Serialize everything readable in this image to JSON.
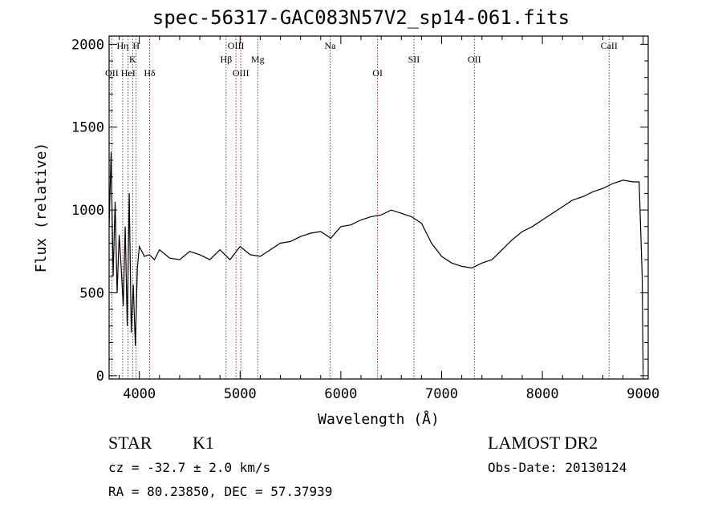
{
  "chart_data": {
    "type": "line",
    "title": "spec-56317-GAC083N57V2_sp14-061.fits",
    "xlabel": "Wavelength (Å)",
    "ylabel": "Flux (relative)",
    "xlim": [
      3700,
      9050
    ],
    "ylim": [
      -20,
      2050
    ],
    "xticks": [
      4000,
      5000,
      6000,
      7000,
      8000,
      9000
    ],
    "yticks": [
      0,
      500,
      1000,
      1500,
      2000
    ],
    "series": [
      {
        "x": [
          3700,
          3720,
          3740,
          3760,
          3780,
          3800,
          3820,
          3840,
          3860,
          3880,
          3900,
          3920,
          3940,
          3960,
          3980,
          4000,
          4050,
          4100,
          4150,
          4200,
          4300,
          4400,
          4500,
          4600,
          4700,
          4800,
          4900,
          5000,
          5100,
          5200,
          5300,
          5400,
          5500,
          5600,
          5700,
          5800,
          5900,
          6000,
          6100,
          6200,
          6300,
          6400,
          6500,
          6600,
          6700,
          6800,
          6900,
          7000,
          7100,
          7200,
          7300,
          7400,
          7500,
          7600,
          7700,
          7800,
          7900,
          8000,
          8100,
          8200,
          8300,
          8400,
          8500,
          8600,
          8700,
          8800,
          8900,
          8960,
          8990,
          9000
        ],
        "values": [
          900,
          1350,
          600,
          1050,
          500,
          850,
          650,
          420,
          900,
          300,
          1100,
          260,
          550,
          180,
          650,
          780,
          720,
          730,
          700,
          760,
          710,
          700,
          750,
          730,
          700,
          760,
          700,
          780,
          730,
          720,
          760,
          800,
          810,
          840,
          860,
          870,
          830,
          900,
          910,
          940,
          960,
          970,
          1000,
          980,
          960,
          920,
          800,
          720,
          680,
          660,
          650,
          680,
          700,
          760,
          820,
          870,
          900,
          940,
          980,
          1020,
          1060,
          1080,
          1110,
          1130,
          1160,
          1180,
          1170,
          1170,
          600,
          30
        ]
      }
    ],
    "lines": [
      {
        "label": "OII",
        "x": 3727,
        "row": 3
      },
      {
        "label": "Hη",
        "x": 3835,
        "row": 1
      },
      {
        "label": "HeI",
        "x": 3889,
        "row": 3
      },
      {
        "label": "K",
        "x": 3934,
        "row": 2
      },
      {
        "label": "H",
        "x": 3968,
        "row": 1
      },
      {
        "label": "Hδ",
        "x": 4102,
        "row": 3
      },
      {
        "label": "Hβ",
        "x": 4861,
        "row": 2
      },
      {
        "label": "OIII",
        "x": 4959,
        "row": 1
      },
      {
        "label": "OIII",
        "x": 5007,
        "row": 3
      },
      {
        "label": "Mg",
        "x": 5175,
        "row": 2
      },
      {
        "label": "Na",
        "x": 5893,
        "row": 1
      },
      {
        "label": "OI",
        "x": 6364,
        "row": 3
      },
      {
        "label": "OII",
        "x": 7325,
        "row": 2
      },
      {
        "label": "SII",
        "x": 6725,
        "row": 2
      },
      {
        "label": "CaII",
        "x": 8662,
        "row": 1
      }
    ],
    "line_color": "#8b1a1a"
  },
  "info": {
    "class": "STAR",
    "subclass": "K1",
    "survey": "LAMOST DR2",
    "cz": "cz = -32.7 ± 2.0 km/s",
    "obsdate": "Obs-Date: 20130124",
    "radec": "RA =  80.23850, DEC =  57.37939"
  }
}
